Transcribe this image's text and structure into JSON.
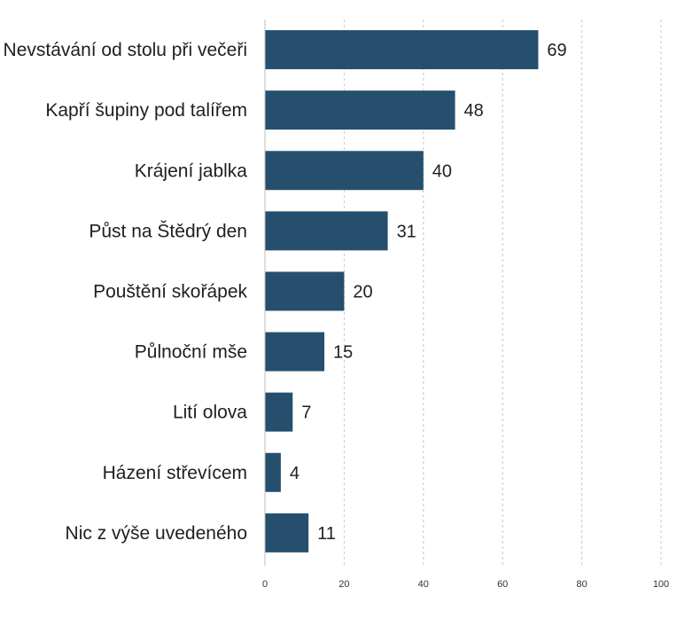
{
  "chart_data": {
    "type": "bar",
    "orientation": "horizontal",
    "categories": [
      "Nevstávání od stolu při večeři",
      "Kapří šupiny pod talířem",
      "Krájení jablka",
      "Půst na Štědrý den",
      "Pouštění skořápek",
      "Půlnoční mše",
      "Lití olova",
      "Házení střevícem",
      "Nic z výše uvedeného"
    ],
    "values": [
      69,
      48,
      40,
      31,
      20,
      15,
      7,
      4,
      11
    ],
    "xlim": [
      0,
      100
    ],
    "xticks": [
      0,
      20,
      40,
      60,
      80,
      100
    ],
    "grid": true,
    "grid_style": "dashed-vertical",
    "data_labels": true,
    "bar_color": "#264f6e",
    "title": "",
    "xlabel": "",
    "ylabel": ""
  }
}
